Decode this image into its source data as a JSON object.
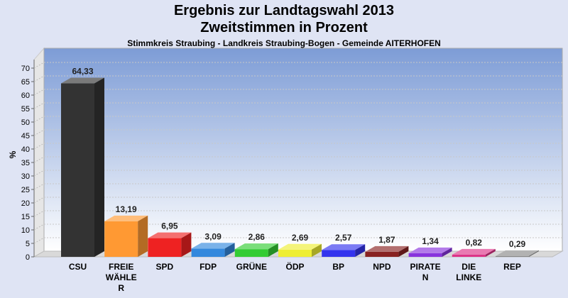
{
  "chart_data": {
    "type": "bar",
    "title": "Ergebnis zur Landtagswahl 2013",
    "subtitle": "Zweitstimmen in Prozent",
    "caption": "Stimmkreis Straubing - Landkreis Straubing-Bogen - Gemeinde AITERHOFEN",
    "ylabel": "%",
    "xlabel": "",
    "ylim": [
      0,
      70
    ],
    "yticks": [
      0,
      5,
      10,
      15,
      20,
      25,
      30,
      35,
      40,
      45,
      50,
      55,
      60,
      65,
      70
    ],
    "grid": true,
    "categories": [
      [
        "CSU"
      ],
      [
        "FREIE",
        "WÄHLE",
        "R"
      ],
      [
        "SPD"
      ],
      [
        "FDP"
      ],
      [
        "GRÜNE"
      ],
      [
        "ÖDP"
      ],
      [
        "BP"
      ],
      [
        "NPD"
      ],
      [
        "PIRATE",
        "N"
      ],
      [
        "DIE",
        "LINKE"
      ],
      [
        "REP"
      ]
    ],
    "values": [
      64.33,
      13.19,
      6.95,
      3.09,
      2.86,
      2.69,
      2.57,
      1.87,
      1.34,
      0.82,
      0.29
    ],
    "value_labels": [
      "64,33",
      "13,19",
      "6,95",
      "3,09",
      "2,86",
      "2,69",
      "2,57",
      "1,87",
      "1,34",
      "0,82",
      "0,29"
    ],
    "colors": [
      "#333333",
      "#ff9933",
      "#ee2222",
      "#3388dd",
      "#33cc33",
      "#eeee33",
      "#3333ee",
      "#882222",
      "#8833dd",
      "#dd3388",
      "#888888"
    ]
  }
}
